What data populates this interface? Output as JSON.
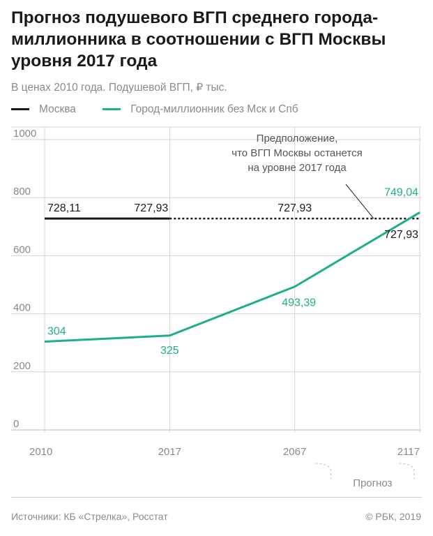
{
  "header": {
    "title": "Прогноз подушевого ВГП среднего города-миллионника в соотношении с ВГП Москвы уровня 2017 года",
    "subtitle": "В ценах 2010 года. Подушевой ВГП, ₽ тыс."
  },
  "legend": [
    {
      "label": "Москва",
      "color": "#1a1a1a"
    },
    {
      "label": "Город-миллионник без Мск и Спб",
      "color": "#1fae8c"
    }
  ],
  "chart_data": {
    "type": "line",
    "x_ticks": [
      "2010",
      "2017",
      "2067",
      "2117"
    ],
    "ylim": [
      0,
      1000
    ],
    "y_ticks": [
      0,
      200,
      400,
      600,
      800,
      1000
    ],
    "grid": true,
    "series": [
      {
        "name": "Москва",
        "color": "#1a1a1a",
        "points": [
          {
            "x": "2010",
            "y": 728.11,
            "label": "728,11"
          },
          {
            "x": "2017",
            "y": 727.93,
            "label": "727,93"
          },
          {
            "x": "2067",
            "y": 727.93,
            "label": "727,93"
          },
          {
            "x": "2117",
            "y": 727.93,
            "label": "727,93"
          }
        ],
        "solid_until": "2017",
        "projected_from": "2017"
      },
      {
        "name": "Город-миллионник без Мск и Спб",
        "color": "#1fae8c",
        "points": [
          {
            "x": "2010",
            "y": 304,
            "label": "304"
          },
          {
            "x": "2017",
            "y": 325,
            "label": "325"
          },
          {
            "x": "2067",
            "y": 493.39,
            "label": "493,39"
          },
          {
            "x": "2117",
            "y": 749.04,
            "label": "749,04"
          }
        ]
      }
    ],
    "annotation": {
      "lines": [
        "Предположение,",
        "что ВГП Москвы останется",
        "на уровне 2017 года"
      ]
    },
    "forecast_label": "Прогноз"
  },
  "footer": {
    "source": "Источники: КБ «Стрелка», Росстат",
    "copyright": "© РБК, 2019"
  }
}
